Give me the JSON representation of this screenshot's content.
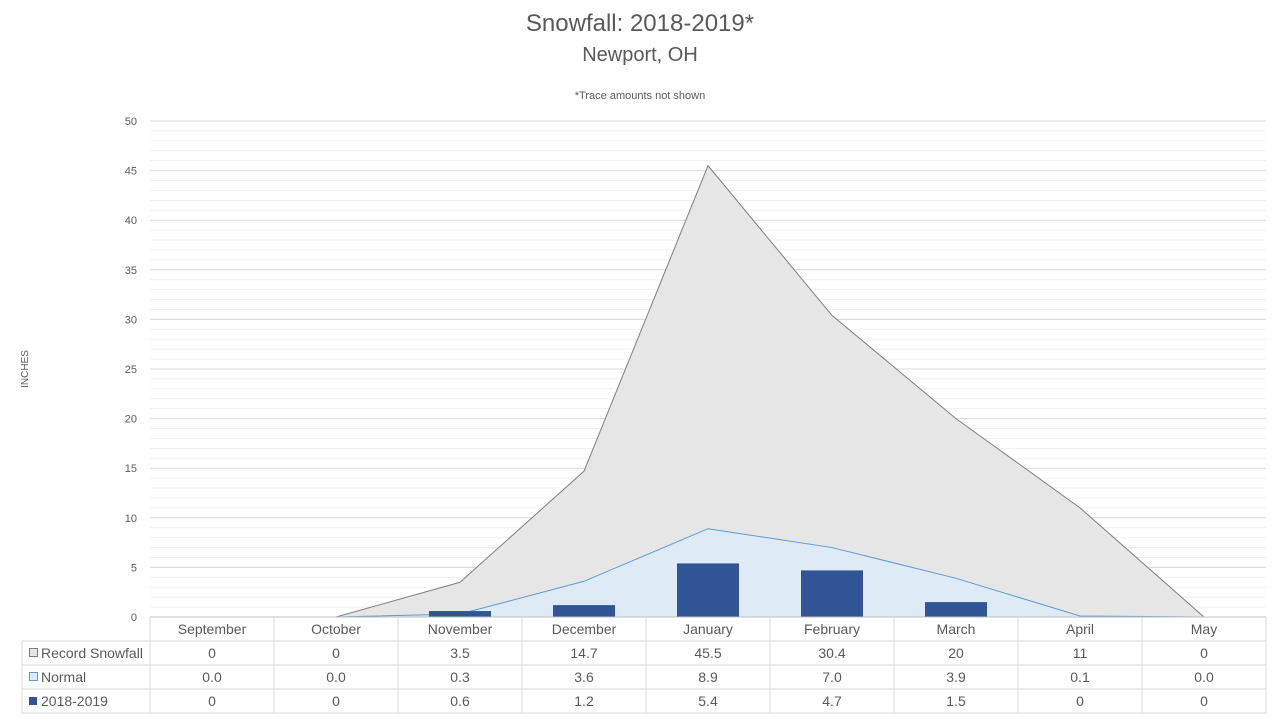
{
  "chart_data": {
    "type": "area",
    "title": "Snowfall: 2018-2019*",
    "subtitle": "Newport, OH",
    "note": "*Trace amounts not shown",
    "ylabel": "INCHES",
    "ylim": [
      0,
      50
    ],
    "yticks": [
      "0",
      "5",
      "10",
      "15",
      "20",
      "25",
      "30",
      "35",
      "40",
      "45",
      "50"
    ],
    "grid": true,
    "legend": "data-table",
    "categories": [
      "September",
      "October",
      "November",
      "December",
      "January",
      "February",
      "March",
      "April",
      "May"
    ],
    "series": [
      {
        "name": "Record Snowfall",
        "kind": "area",
        "color": "#e6e6e6",
        "stroke": "#7f7f7f",
        "values": [
          0,
          0,
          3.5,
          14.7,
          45.5,
          30.4,
          20,
          11,
          0
        ],
        "labels": [
          "0",
          "0",
          "3.5",
          "14.7",
          "45.5",
          "30.4",
          "20",
          "11",
          "0"
        ]
      },
      {
        "name": "Normal",
        "kind": "area",
        "color": "#deebf7",
        "stroke": "#5b9bd5",
        "values": [
          0.0,
          0.0,
          0.3,
          3.6,
          8.9,
          7.0,
          3.9,
          0.1,
          0.0
        ],
        "labels": [
          "0.0",
          "0.0",
          "0.3",
          "3.6",
          "8.9",
          "7.0",
          "3.9",
          "0.1",
          "0.0"
        ]
      },
      {
        "name": "2018-2019",
        "kind": "bar",
        "color": "#2f5597",
        "values": [
          0,
          0,
          0.6,
          1.2,
          5.4,
          4.7,
          1.5,
          0,
          0
        ],
        "labels": [
          "0",
          "0",
          "0.6",
          "1.2",
          "5.4",
          "4.7",
          "1.5",
          "0",
          "0"
        ]
      }
    ]
  }
}
